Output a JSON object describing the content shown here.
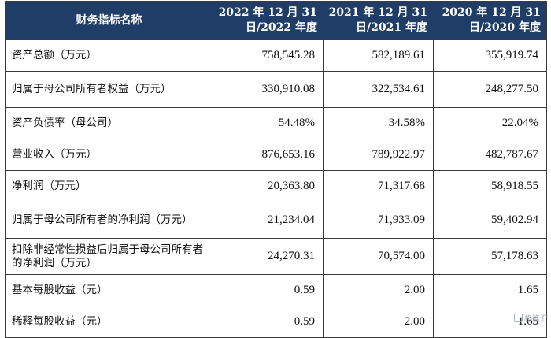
{
  "table": {
    "header": {
      "label": "财务指标名称",
      "years": [
        [
          "2022 年 12 月 31",
          "日/2022 年度"
        ],
        [
          "2021 年 12 月 31",
          "日/2021 年度"
        ],
        [
          "2020 年 12 月 31",
          "日/2020 年度"
        ]
      ]
    },
    "rows": [
      {
        "label": "资产总额（万元）",
        "values": [
          "758,545.28",
          "582,189.61",
          "355,919.74"
        ]
      },
      {
        "label": "归属于母公司所有者权益（万元）",
        "values": [
          "330,910.08",
          "322,534.61",
          "248,277.50"
        ]
      },
      {
        "label": "资产负债率（母公司）",
        "values": [
          "54.48%",
          "34.58%",
          "22.04%"
        ]
      },
      {
        "label": "营业收入（万元）",
        "values": [
          "876,653.16",
          "789,922.97",
          "482,787.67"
        ]
      },
      {
        "label": "净利润（万元）",
        "values": [
          "20,363.80",
          "71,317.68",
          "58,918.55"
        ]
      },
      {
        "label": "归属于母公司所有者的净利润（万元）",
        "values": [
          "21,234.04",
          "71,933.09",
          "59,402.94"
        ]
      },
      {
        "label": "扣除非经常性损益后归属于母公司所有者的净利润（万元）",
        "values": [
          "24,270.31",
          "70,574.00",
          "57,178.63"
        ]
      },
      {
        "label": "基本每股收益（元）",
        "values": [
          "0.59",
          "2.00",
          "1.65"
        ]
      },
      {
        "label": "稀释每股收益（元）",
        "values": [
          "0.59",
          "2.00",
          "1.65"
        ]
      }
    ]
  },
  "watermark": {
    "text": "格隆汇",
    "icon": "logo-icon"
  }
}
